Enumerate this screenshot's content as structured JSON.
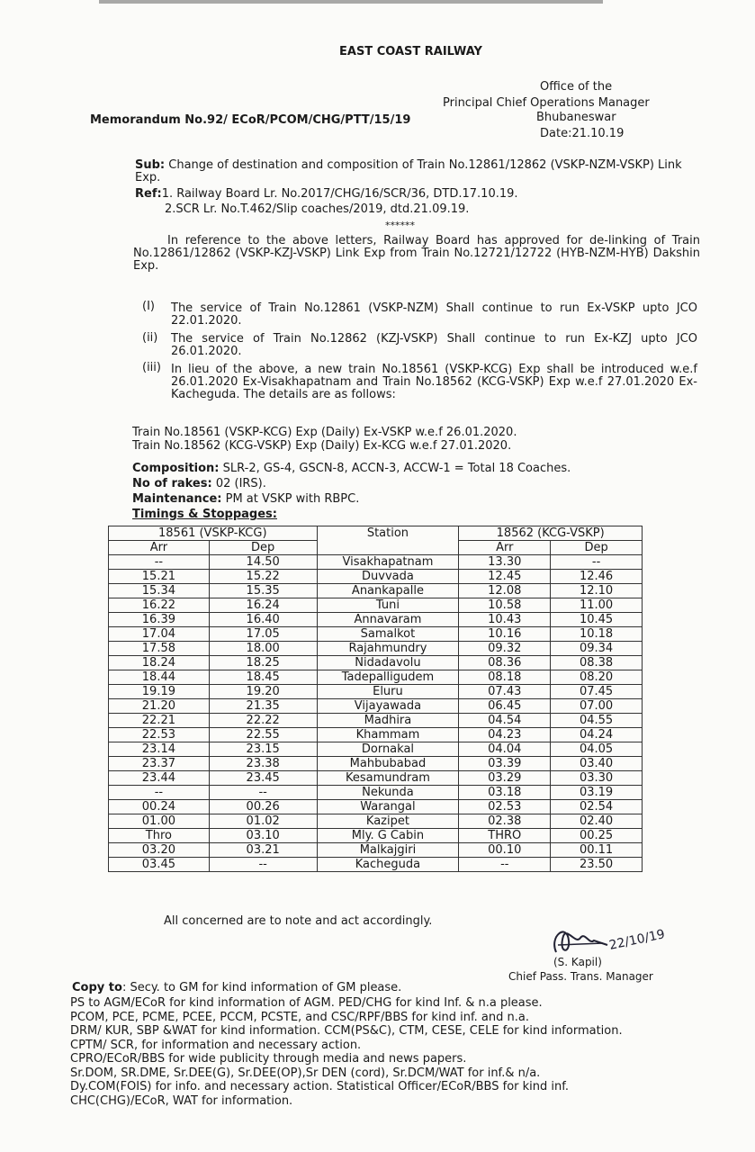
{
  "header": {
    "org": "EAST COAST RAILWAY",
    "office_lines": [
      "Office of the",
      "Principal Chief Operations Manager",
      "Bhubaneswar",
      "Date:21.10.19"
    ],
    "memo": "Memorandum No.92/ ECoR/PCOM/CHG/PTT/15/19"
  },
  "subject": {
    "label": "Sub:",
    "text": "Change of destination and composition of Train No.12861/12862 (VSKP-NZM-VSKP) Link Exp."
  },
  "refs": {
    "label": "Ref:",
    "items": [
      "1. Railway Board Lr. No.2017/CHG/16/SCR/36, DTD.17.10.19.",
      "2.SCR Lr. No.T.462/Slip coaches/2019, dtd.21.09.19."
    ]
  },
  "separator": "******",
  "intro": "In reference to the above letters, Railway Board has approved for de-linking of Train No.12861/12862 (VSKP-KZJ-VSKP) Link Exp from Train No.12721/12722 (HYB-NZM-HYB) Dakshin Exp.",
  "points": [
    {
      "num": "(I)",
      "text": "The service of Train No.12861 (VSKP-NZM) Shall continue to run  Ex-VSKP upto JCO 22.01.2020."
    },
    {
      "num": "(ii)",
      "text": "The service of Train No.12862 (KZJ-VSKP) Shall continue to run Ex-KZJ upto JCO 26.01.2020."
    },
    {
      "num": "(iii)",
      "text": "In lieu of the above, a new train No.18561 (VSKP-KCG) Exp shall be introduced w.e.f 26.01.2020 Ex-Visakhapatnam and Train No.18562 (KCG-VSKP) Exp w.e.f 27.01.2020 Ex-Kacheguda. The details are as follows:"
    }
  ],
  "trains": [
    "Train No.18561 (VSKP-KCG) Exp (Daily) Ex-VSKP w.e.f 26.01.2020.",
    "Train No.18562 (KCG-VSKP) Exp (Daily) Ex-KCG w.e.f 27.01.2020."
  ],
  "composition": {
    "label": "Composition:",
    "text": " SLR-2, GS-4, GSCN-8, ACCN-3, ACCW-1 = Total 18 Coaches."
  },
  "rakes": {
    "label": "No of rakes:",
    "text": " 02 (IRS)."
  },
  "maintenance": {
    "label": "Maintenance:",
    "text": " PM at VSKP with RBPC."
  },
  "timings_label": "Timings & Stoppages:",
  "table": {
    "left_header": "18561 (VSKP-KCG)",
    "station_header": "Station",
    "right_header": "18562 (KCG-VSKP)",
    "arr": "Arr",
    "dep": "Dep",
    "rows": [
      [
        "--",
        "14.50",
        "Visakhapatnam",
        "13.30",
        "--"
      ],
      [
        "15.21",
        "15.22",
        "Duvvada",
        "12.45",
        "12.46"
      ],
      [
        "15.34",
        "15.35",
        "Anankapalle",
        "12.08",
        "12.10"
      ],
      [
        "16.22",
        "16.24",
        "Tuni",
        "10.58",
        "11.00"
      ],
      [
        "16.39",
        "16.40",
        "Annavaram",
        "10.43",
        "10.45"
      ],
      [
        "17.04",
        "17.05",
        "Samalkot",
        "10.16",
        "10.18"
      ],
      [
        "17.58",
        "18.00",
        "Rajahmundry",
        "09.32",
        "09.34"
      ],
      [
        "18.24",
        "18.25",
        "Nidadavolu",
        "08.36",
        "08.38"
      ],
      [
        "18.44",
        "18.45",
        "Tadepalligudem",
        "08.18",
        "08.20"
      ],
      [
        "19.19",
        "19.20",
        "Eluru",
        "07.43",
        "07.45"
      ],
      [
        "21.20",
        "21.35",
        "Vijayawada",
        "06.45",
        "07.00"
      ],
      [
        "22.21",
        "22.22",
        "Madhira",
        "04.54",
        "04.55"
      ],
      [
        "22.53",
        "22.55",
        "Khammam",
        "04.23",
        "04.24"
      ],
      [
        "23.14",
        "23.15",
        "Dornakal",
        "04.04",
        "04.05"
      ],
      [
        "23.37",
        "23.38",
        "Mahbubabad",
        "03.39",
        "03.40"
      ],
      [
        "23.44",
        "23.45",
        "Kesamundram",
        "03.29",
        "03.30"
      ],
      [
        "--",
        "--",
        "Nekunda",
        "03.18",
        "03.19"
      ],
      [
        "00.24",
        "00.26",
        "Warangal",
        "02.53",
        "02.54"
      ],
      [
        "01.00",
        "01.02",
        "Kazipet",
        "02.38",
        "02.40"
      ],
      [
        "Thro",
        "03.10",
        "Mly. G Cabin",
        "THRO",
        "00.25"
      ],
      [
        "03.20",
        "03.21",
        "Malkajgiri",
        "00.10",
        "00.11"
      ],
      [
        "03.45",
        "--",
        "Kacheguda",
        "--",
        "23.50"
      ]
    ]
  },
  "closing": "All concerned are to note and act accordingly.",
  "signature": {
    "handwritten": "22/10/19",
    "name": "(S. Kapil)",
    "title": "Chief Pass. Trans. Manager"
  },
  "copy_to": {
    "label": "Copy to",
    "first": ": Secy. to GM for kind information of GM please.",
    "lines": [
      "PS to AGM/ECoR for kind information of AGM. PED/CHG for kind Inf. & n.a please.",
      "PCOM, PCE, PCME, PCEE, PCCM, PCSTE, and CSC/RPF/BBS for kind inf. and n.a.",
      "DRM/ KUR, SBP &WAT for kind information. CCM(PS&C), CTM, CESE, CELE for kind information.",
      "CPTM/ SCR, for information and necessary action.",
      "CPRO/ECoR/BBS for wide publicity through media and news papers.",
      "Sr.DOM, SR.DME, Sr.DEE(G), Sr.DEE(OP),Sr DEN (cord), Sr.DCM/WAT for inf.& n/a.",
      "Dy.COM(FOIS) for info. and necessary action. Statistical Officer/ECoR/BBS for kind inf.",
      "CHC(CHG)/ECoR, WAT  for information."
    ]
  }
}
